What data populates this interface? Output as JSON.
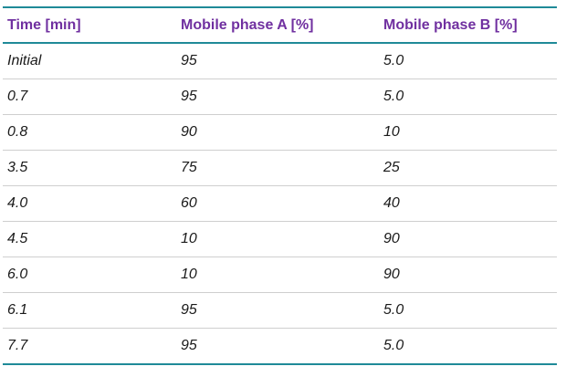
{
  "table": {
    "header": [
      "Time [min]",
      "Mobile phase A [%]",
      "Mobile phase B [%]"
    ],
    "rows": [
      [
        "Initial",
        "95",
        "5.0"
      ],
      [
        "0.7",
        "95",
        "5.0"
      ],
      [
        "0.8",
        "90",
        "10"
      ],
      [
        "3.5",
        "75",
        "25"
      ],
      [
        "4.0",
        "60",
        "40"
      ],
      [
        "4.5",
        "10",
        "90"
      ],
      [
        "6.0",
        "10",
        "90"
      ],
      [
        "6.1",
        "95",
        "5.0"
      ],
      [
        "7.7",
        "95",
        "5.0"
      ]
    ]
  }
}
